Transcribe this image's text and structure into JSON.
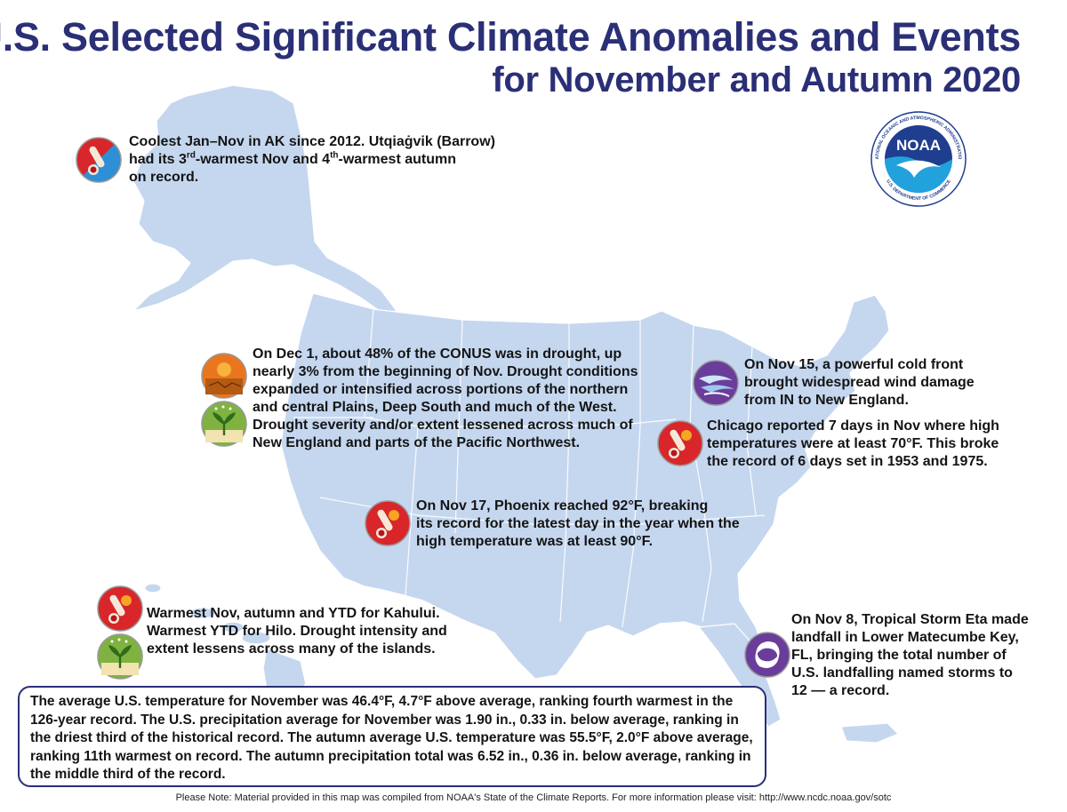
{
  "title": {
    "line1": "U.S. Selected Significant Climate Anomalies and Events",
    "line2": "for November and Autumn 2020"
  },
  "logo": {
    "label": "NOAA",
    "ring_top": "NATIONAL OCEANIC AND ATMOSPHERIC ADMINISTRATION",
    "ring_bottom": "U.S. DEPARTMENT OF COMMERCE"
  },
  "events": {
    "alaska": {
      "icon": "thermometer-hot-cold-icon",
      "line1": "Coolest Jan–Nov in AK since 2012. Utqiaġvik (Barrow)",
      "line2_pre": "had its 3",
      "line2_sup1": "rd",
      "line2_mid": "-warmest Nov and 4",
      "line2_sup2": "th",
      "line2_post": "-warmest autumn",
      "line3": "on record."
    },
    "drought": {
      "icons": [
        "drought-sun-icon",
        "drought-relief-plant-icon"
      ],
      "lines": [
        "On Dec 1, about 48% of the CONUS was in drought, up",
        "nearly 3% from the beginning of Nov. Drought conditions",
        "expanded or intensified across portions of the northern",
        "and central Plains, Deep South and much of the West.",
        "Drought severity and/or extent lessened across much of",
        "New England and parts of the Pacific Northwest."
      ]
    },
    "wind": {
      "icon": "wind-icon",
      "lines": [
        "On Nov 15, a powerful cold front",
        "brought widespread wind damage",
        "from IN to New England."
      ]
    },
    "chicago": {
      "icon": "thermometer-hot-icon",
      "lines": [
        "Chicago reported 7 days in Nov where high",
        "temperatures were at least 70°F. This broke",
        "the record of 6 days set in 1953 and 1975."
      ]
    },
    "phoenix": {
      "icon": "thermometer-hot-icon",
      "lines": [
        "On Nov 17, Phoenix reached 92°F, breaking",
        "its record for the latest day in the year when the",
        "high temperature was at least 90°F."
      ]
    },
    "hawaii": {
      "icons": [
        "thermometer-hot-icon",
        "drought-relief-plant-icon"
      ],
      "lines": [
        "Warmest Nov, autumn and YTD for Kahului.",
        "Warmest YTD for Hilo. Drought intensity and",
        "extent lessens across many of the islands."
      ]
    },
    "eta": {
      "icon": "tropical-storm-icon",
      "lines": [
        "On Nov 8, Tropical Storm Eta made",
        "landfall in Lower Matecumbe Key,",
        "FL, bringing the total number of",
        "U.S. landfalling named storms to",
        "12 — a record."
      ]
    }
  },
  "summary": {
    "lines": [
      "The average U.S. temperature for November was 46.4°F, 4.7°F above average, ranking fourth warmest in the",
      "126-year record. The U.S. precipitation average for November was 1.90 in., 0.33 in. below average, ranking in",
      "the driest third of the historical record. The autumn average U.S. temperature was 55.5°F, 2.0°F above average,",
      "ranking 11th warmest on record. The autumn precipitation total was 6.52 in., 0.36 in. below average, ranking in",
      "the middle third of the record."
    ]
  },
  "footer": "Please Note: Material provided in this map was compiled from NOAA's State of the Climate Reports. For more information please visit: http://www.ncdc.noaa.gov/sotc",
  "colors": {
    "title": "#2a2f76",
    "land": "#c5d7ef",
    "border": "#ffffff",
    "hot": "#d8262b",
    "drought": "#e9761f",
    "plant": "#7fb241",
    "wind": "#6a3d9a"
  }
}
